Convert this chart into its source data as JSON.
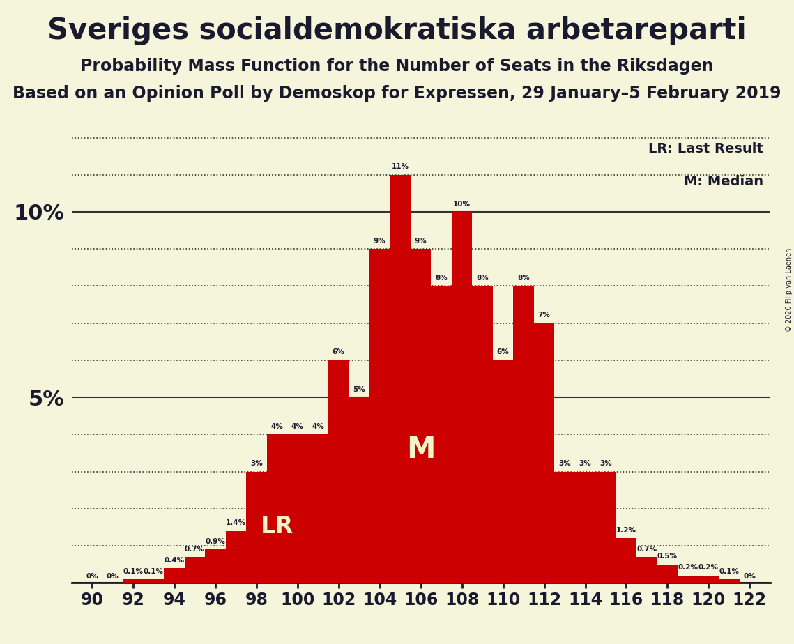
{
  "title": "Sveriges socialdemokratiska arbetareparti",
  "subtitle1": "Probability Mass Function for the Number of Seats in the Riksdagen",
  "subtitle2": "Based on an Opinion Poll by Demoskop for Expressen, 29 January–5 February 2019",
  "copyright": "© 2020 Filip van Laenen",
  "bar_color": "#cc0000",
  "background_color": "#f5f5dc",
  "text_color": "#1a1a2e",
  "grid_color": "#333333",
  "lr_seat": 99,
  "median_seat": 106,
  "seats_full": [
    90,
    91,
    92,
    93,
    94,
    95,
    96,
    97,
    98,
    99,
    100,
    101,
    102,
    103,
    104,
    105,
    106,
    107,
    108,
    109,
    110,
    111,
    112,
    113,
    114,
    115,
    116,
    117,
    118,
    119,
    120,
    121,
    122
  ],
  "bar_values": [
    0.0,
    0.0,
    0.1,
    0.1,
    0.4,
    0.7,
    0.9,
    1.4,
    3.0,
    4.0,
    4.0,
    4.0,
    6.0,
    5.0,
    9.0,
    11.0,
    9.0,
    8.0,
    10.0,
    8.0,
    6.0,
    8.0,
    7.0,
    3.0,
    3.0,
    3.0,
    1.2,
    0.7,
    0.5,
    0.2,
    0.2,
    0.1,
    0.0
  ],
  "bar_labels": {
    "90": "0%",
    "91": "0%",
    "92": "0.1%",
    "93": "0.1%",
    "94": "0.4%",
    "95": "0.7%",
    "96": "0.9%",
    "97": "1.4%",
    "98": "3%",
    "99": "4%",
    "100": "4%",
    "101": "4%",
    "102": "6%",
    "103": "5%",
    "104": "9%",
    "105": "11%",
    "106": "9%",
    "107": "8%",
    "108": "10%",
    "109": "8%",
    "110": "6%",
    "111": "8%",
    "112": "7%",
    "113": "3%",
    "114": "3%",
    "115": "3%",
    "116": "1.2%",
    "117": "0.7%",
    "118": "0.5%",
    "119": "0.2%",
    "120": "0.2%",
    "121": "0.1%",
    "122": "0%"
  },
  "xtick_positions": [
    90,
    92,
    94,
    96,
    98,
    100,
    102,
    104,
    106,
    108,
    110,
    112,
    114,
    116,
    118,
    120,
    122
  ],
  "ytick_labeled": [
    5,
    10
  ]
}
